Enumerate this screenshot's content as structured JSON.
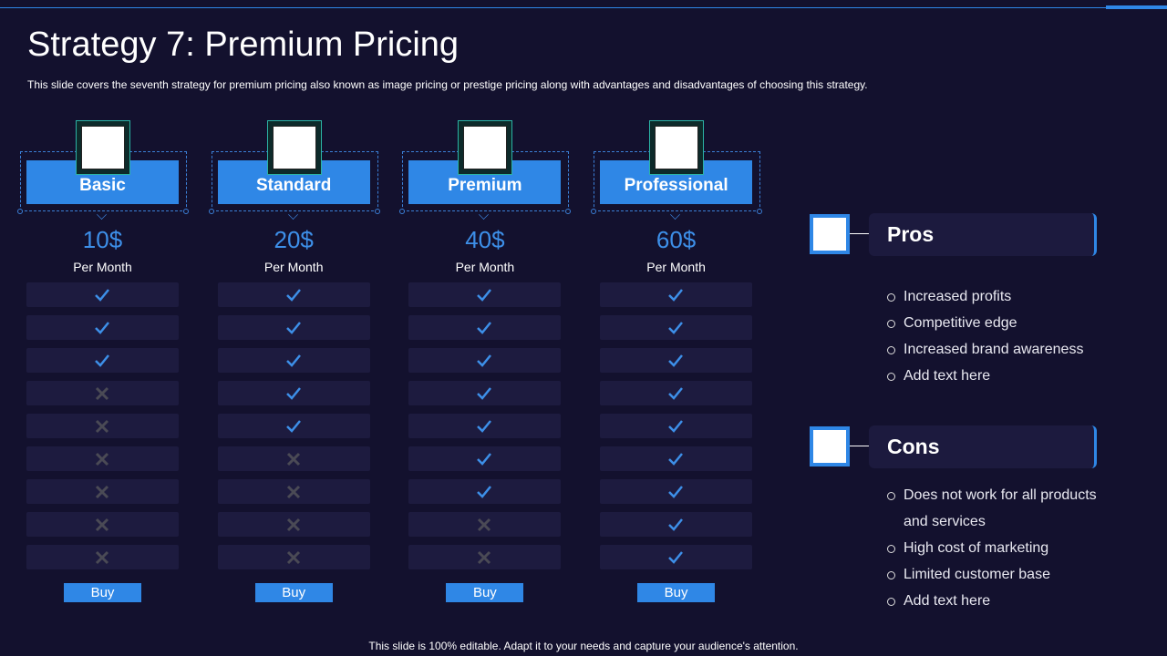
{
  "title": "Strategy 7: Premium Pricing",
  "subtitle": "This slide covers the seventh strategy for premium pricing also known as image pricing or prestige pricing along with advantages and disadvantages of choosing this strategy.",
  "plans": [
    {
      "name": "Basic",
      "price": "10$",
      "period": "Per Month",
      "features": [
        true,
        true,
        true,
        false,
        false,
        false,
        false,
        false,
        false
      ],
      "button": "Buy"
    },
    {
      "name": "Standard",
      "price": "20$",
      "period": "Per Month",
      "features": [
        true,
        true,
        true,
        true,
        true,
        false,
        false,
        false,
        false
      ],
      "button": "Buy"
    },
    {
      "name": "Premium",
      "price": "40$",
      "period": "Per Month",
      "features": [
        true,
        true,
        true,
        true,
        true,
        true,
        true,
        false,
        false
      ],
      "button": "Buy"
    },
    {
      "name": "Professional",
      "price": "60$",
      "period": "Per Month",
      "features": [
        true,
        true,
        true,
        true,
        true,
        true,
        true,
        true,
        true
      ],
      "button": "Buy"
    }
  ],
  "pros": {
    "title": "Pros",
    "items": [
      "Increased profits",
      "Competitive edge",
      "Increased brand awareness",
      "Add text here"
    ]
  },
  "cons": {
    "title": "Cons",
    "items": [
      "Does not work for all products and services",
      "High cost of marketing",
      "Limited customer base",
      "Add text here"
    ]
  },
  "footer": "This slide is 100% editable. Adapt it to your needs and capture your audience's attention."
}
